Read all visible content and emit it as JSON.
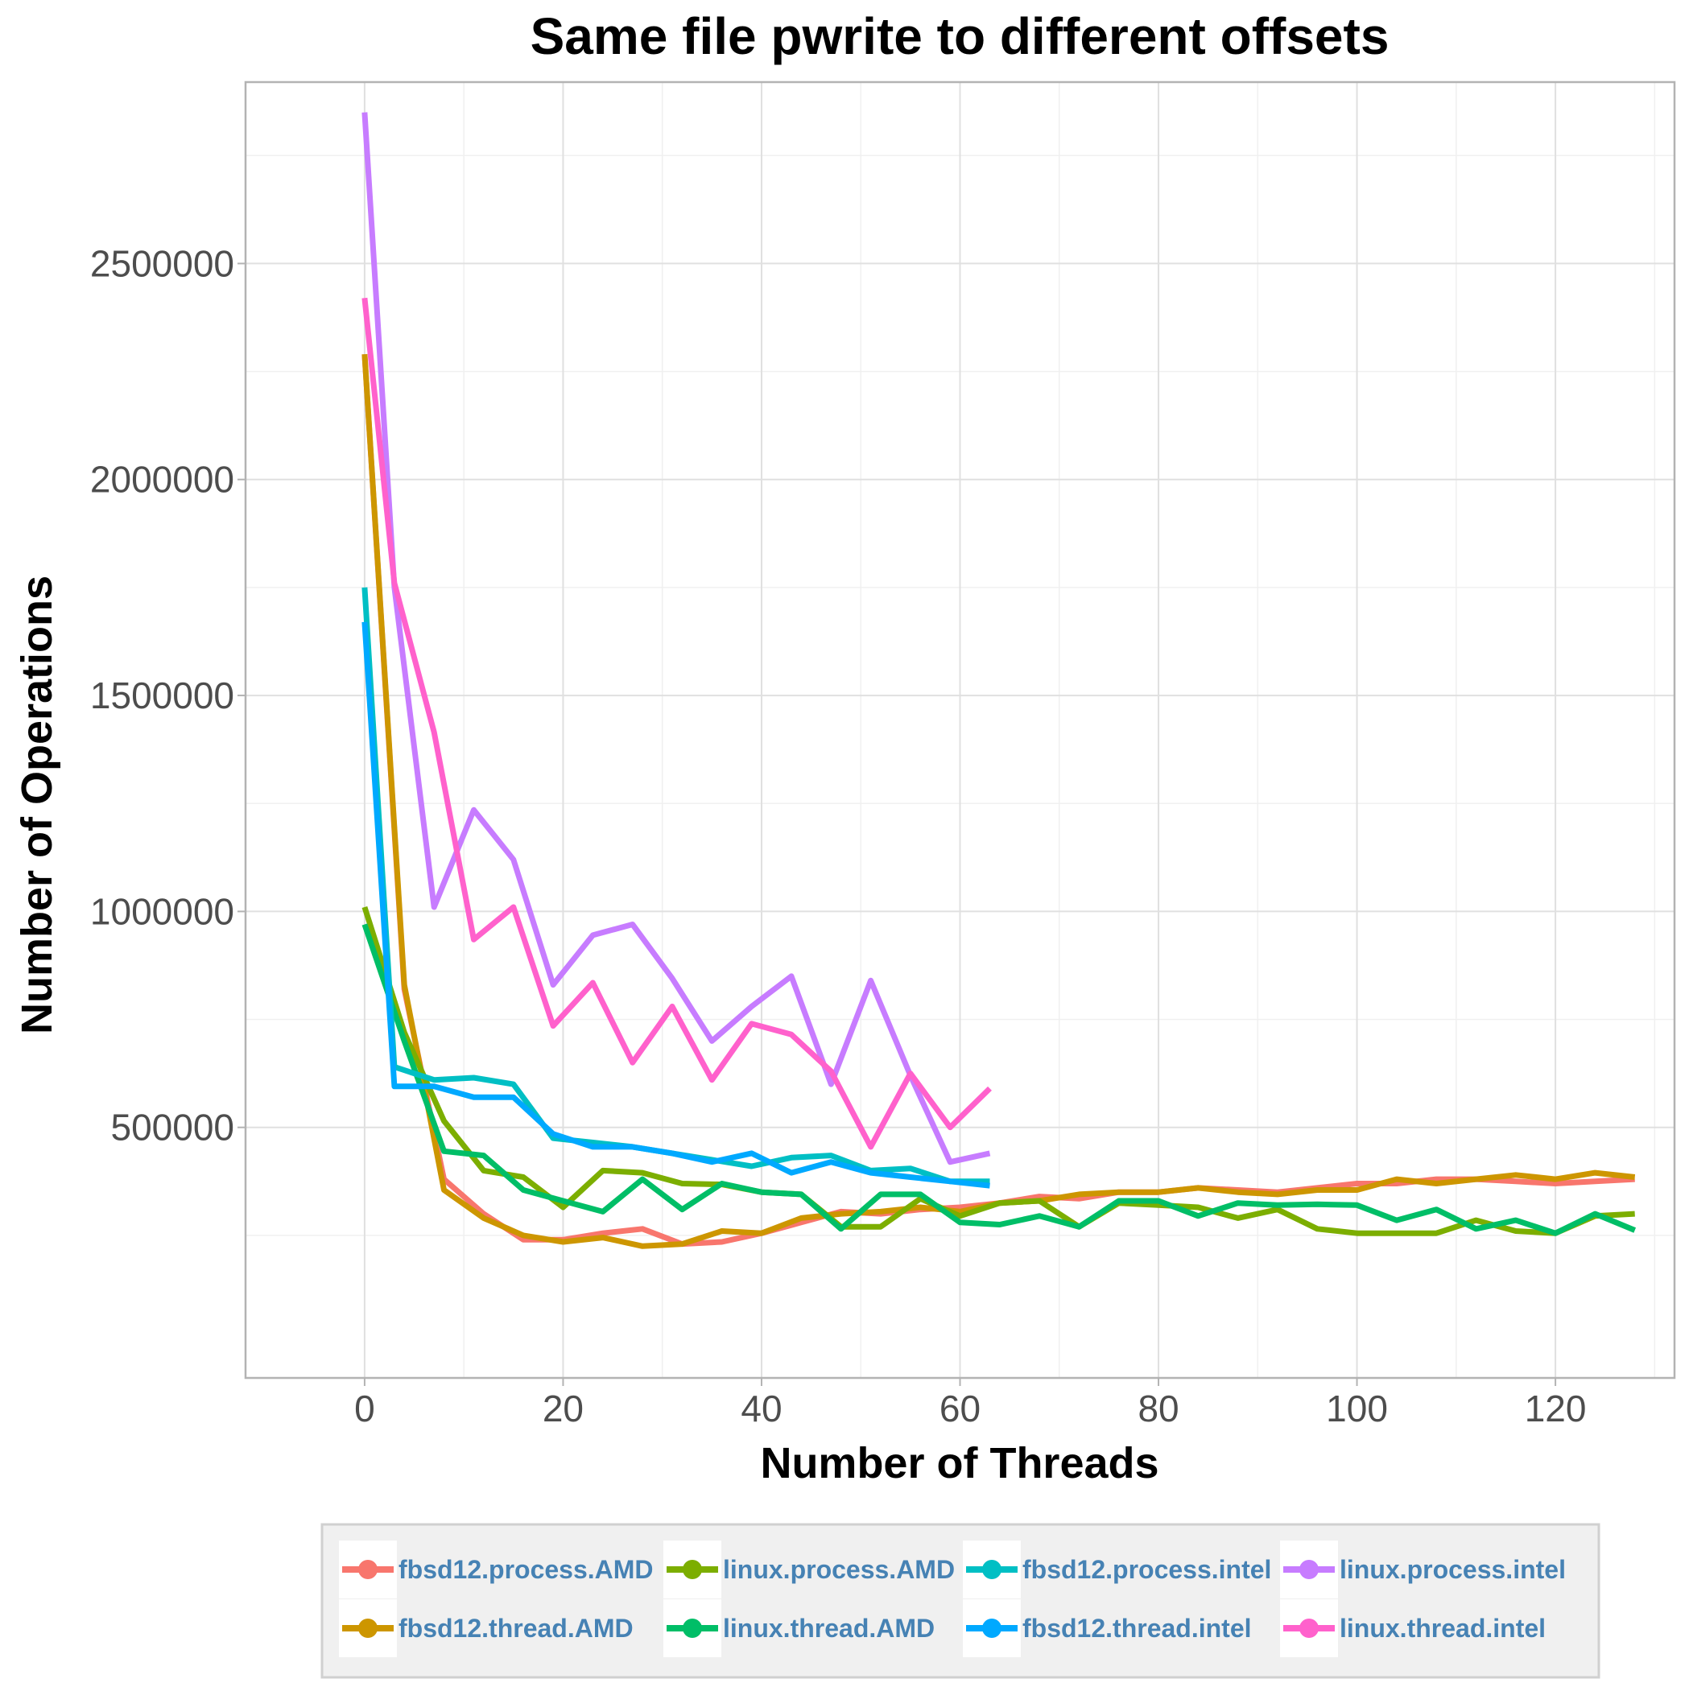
{
  "chart_data": {
    "type": "line",
    "title": "Same file pwrite to different offsets",
    "xlabel": "Number of Threads",
    "ylabel": "Number of Operations",
    "xlim": [
      -12,
      132
    ],
    "ylim": [
      -80000,
      2920000
    ],
    "x_ticks": [
      0,
      20,
      40,
      60,
      80,
      100,
      120
    ],
    "x_minor_ticks": [
      10,
      30,
      50,
      70,
      90,
      110,
      130
    ],
    "y_ticks": [
      500000,
      1000000,
      1500000,
      2000000,
      2500000
    ],
    "y_tick_labels": [
      "500000",
      "1000000",
      "1500000",
      "2000000",
      "2500000"
    ],
    "y_minor_ticks": [
      250000,
      750000,
      1250000,
      1750000,
      2250000,
      2750000
    ],
    "grid": true,
    "legend_position": "bottom",
    "series": [
      {
        "name": "fbsd12.process.AMD",
        "color": "#F8766D",
        "x": [
          0,
          4,
          8,
          12,
          16,
          20,
          24,
          28,
          32,
          36,
          40,
          44,
          48,
          52,
          56,
          60,
          64,
          68,
          72,
          76,
          80,
          84,
          88,
          92,
          96,
          100,
          104,
          108,
          112,
          116,
          120,
          124,
          128
        ],
        "values": [
          2290000,
          820000,
          380000,
          300000,
          240000,
          240000,
          255000,
          265000,
          230000,
          235000,
          255000,
          280000,
          305000,
          300000,
          310000,
          315000,
          325000,
          340000,
          335000,
          350000,
          350000,
          360000,
          355000,
          350000,
          360000,
          370000,
          370000,
          380000,
          380000,
          375000,
          370000,
          375000,
          380000
        ]
      },
      {
        "name": "fbsd12.thread.AMD",
        "color": "#CD9600",
        "x": [
          0,
          4,
          8,
          12,
          16,
          20,
          24,
          28,
          32,
          36,
          40,
          44,
          48,
          52,
          56,
          60,
          64,
          68,
          72,
          76,
          80,
          84,
          88,
          92,
          96,
          100,
          104,
          108,
          112,
          116,
          120,
          124,
          128
        ],
        "values": [
          2290000,
          830000,
          355000,
          290000,
          250000,
          235000,
          245000,
          225000,
          230000,
          260000,
          255000,
          290000,
          300000,
          305000,
          315000,
          305000,
          325000,
          330000,
          345000,
          350000,
          350000,
          360000,
          350000,
          345000,
          355000,
          355000,
          380000,
          370000,
          380000,
          390000,
          380000,
          395000,
          385000
        ]
      },
      {
        "name": "linux.process.AMD",
        "color": "#7CAE00",
        "x": [
          0,
          4,
          8,
          12,
          16,
          20,
          24,
          28,
          32,
          36,
          40,
          44,
          48,
          52,
          56,
          60,
          64,
          68,
          72,
          76,
          80,
          84,
          88,
          92,
          96,
          100,
          104,
          108,
          112,
          116,
          120,
          124,
          128
        ],
        "values": [
          1010000,
          720000,
          515000,
          400000,
          385000,
          315000,
          400000,
          395000,
          370000,
          368000,
          350000,
          345000,
          270000,
          270000,
          335000,
          295000,
          325000,
          330000,
          270000,
          325000,
          320000,
          315000,
          290000,
          310000,
          265000,
          255000,
          255000,
          255000,
          285000,
          260000,
          255000,
          295000,
          300000
        ]
      },
      {
        "name": "linux.thread.AMD",
        "color": "#00BE67",
        "x": [
          0,
          4,
          8,
          12,
          16,
          20,
          24,
          28,
          32,
          36,
          40,
          44,
          48,
          52,
          56,
          60,
          64,
          68,
          72,
          76,
          80,
          84,
          88,
          92,
          96,
          100,
          104,
          108,
          112,
          116,
          120,
          124,
          128
        ],
        "values": [
          970000,
          700000,
          445000,
          435000,
          355000,
          330000,
          305000,
          380000,
          310000,
          370000,
          350000,
          345000,
          265000,
          345000,
          345000,
          280000,
          275000,
          295000,
          270000,
          330000,
          330000,
          295000,
          325000,
          320000,
          322000,
          320000,
          285000,
          310000,
          265000,
          285000,
          255000,
          300000,
          262000
        ]
      },
      {
        "name": "fbsd12.process.intel",
        "color": "#00BFC4",
        "x": [
          0,
          3,
          7,
          11,
          15,
          19,
          23,
          27,
          31,
          35,
          39,
          43,
          47,
          51,
          55,
          59,
          63
        ],
        "values": [
          1750000,
          640000,
          610000,
          615000,
          600000,
          475000,
          465000,
          455000,
          440000,
          425000,
          410000,
          430000,
          435000,
          400000,
          405000,
          375000,
          375000
        ]
      },
      {
        "name": "fbsd12.thread.intel",
        "color": "#00A9FF",
        "x": [
          0,
          3,
          7,
          11,
          15,
          19,
          23,
          27,
          31,
          35,
          39,
          43,
          47,
          51,
          55,
          59,
          63
        ],
        "values": [
          1670000,
          595000,
          595000,
          570000,
          570000,
          485000,
          455000,
          455000,
          440000,
          420000,
          440000,
          395000,
          420000,
          395000,
          385000,
          375000,
          365000
        ]
      },
      {
        "name": "linux.process.intel",
        "color": "#C77CFF",
        "x": [
          0,
          3,
          7,
          11,
          15,
          19,
          23,
          27,
          31,
          35,
          39,
          43,
          47,
          51,
          55,
          59,
          63
        ],
        "values": [
          2850000,
          1750000,
          1010000,
          1235000,
          1120000,
          830000,
          945000,
          970000,
          845000,
          700000,
          780000,
          850000,
          600000,
          840000,
          620000,
          420000,
          440000
        ]
      },
      {
        "name": "linux.thread.intel",
        "color": "#FF61CC",
        "x": [
          0,
          3,
          7,
          11,
          15,
          19,
          23,
          27,
          31,
          35,
          39,
          43,
          47,
          51,
          55,
          59,
          63
        ],
        "values": [
          2420000,
          1760000,
          1415000,
          935000,
          1010000,
          735000,
          835000,
          650000,
          780000,
          610000,
          740000,
          715000,
          630000,
          455000,
          625000,
          500000,
          590000
        ]
      }
    ]
  }
}
